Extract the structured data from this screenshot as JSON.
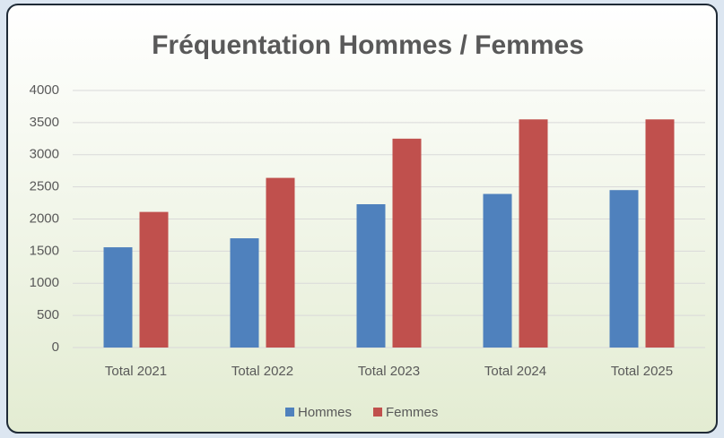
{
  "chart_data": {
    "type": "bar",
    "title": "Fréquentation Hommes / Femmes",
    "categories": [
      "Total 2021",
      "Total 2022",
      "Total 2023",
      "Total 2024",
      "Total 2025"
    ],
    "series": [
      {
        "name": "Hommes",
        "color": "#4f81bd",
        "values": [
          1560,
          1700,
          2230,
          2390,
          2450
        ]
      },
      {
        "name": "Femmes",
        "color": "#c0504d",
        "values": [
          2110,
          2640,
          3250,
          3550,
          3550
        ]
      }
    ],
    "ylim": [
      0,
      4000
    ],
    "yticks": [
      0,
      500,
      1000,
      1500,
      2000,
      2500,
      3000,
      3500,
      4000
    ],
    "grid": true,
    "legend": "bottom"
  }
}
